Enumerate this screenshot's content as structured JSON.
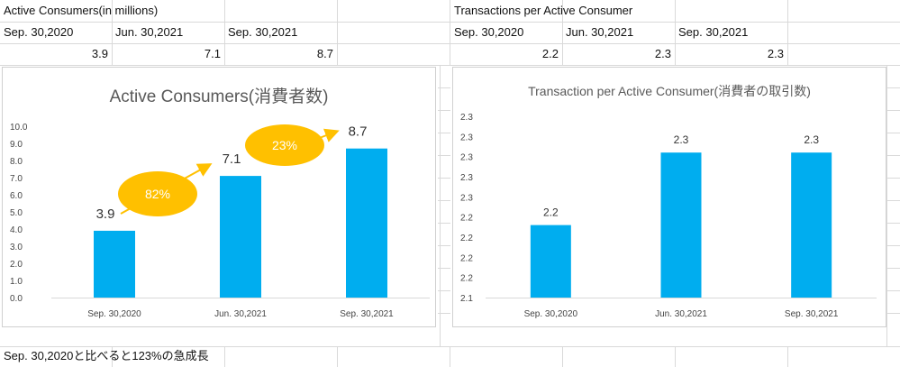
{
  "sheet": {
    "left_block": {
      "title": "Active Consumers(in millions)",
      "dates": [
        "Sep. 30,2020",
        "Jun. 30,2021",
        "Sep. 30,2021"
      ],
      "values": [
        "3.9",
        "7.1",
        "8.7"
      ]
    },
    "right_block": {
      "title": "Transactions per Active Consumer",
      "dates": [
        "Sep. 30,2020",
        "Jun. 30,2021",
        "Sep. 30,2021"
      ],
      "values": [
        "2.2",
        "2.3",
        "2.3"
      ]
    },
    "note": "Sep. 30,2020と比べると123%の急成長"
  },
  "colors": {
    "bar": "#00adef",
    "growth_bubble": "#ffc000",
    "growth_text": "#ffffff",
    "axis_text": "#444444",
    "title_text": "#595959"
  },
  "chart_data": [
    {
      "type": "bar",
      "title": "Active Consumers(消費者数)",
      "categories": [
        "Sep. 30,2020",
        "Jun. 30,2021",
        "Sep. 30,2021"
      ],
      "values": [
        3.9,
        7.1,
        8.7
      ],
      "data_labels": [
        "3.9",
        "7.1",
        "8.7"
      ],
      "ylim": [
        0,
        10
      ],
      "yticks": [
        "0.0",
        "1.0",
        "2.0",
        "3.0",
        "4.0",
        "5.0",
        "6.0",
        "7.0",
        "8.0",
        "9.0",
        "10.0"
      ],
      "xlabel": "",
      "ylabel": "",
      "grid": false,
      "annotations": [
        {
          "text": "82%",
          "from": "Sep. 30,2020",
          "to": "Jun. 30,2021"
        },
        {
          "text": "23%",
          "from": "Jun. 30,2021",
          "to": "Sep. 30,2021"
        }
      ]
    },
    {
      "type": "bar",
      "title": "Transaction per Active Consumer(消費者の取引数)",
      "categories": [
        "Sep. 30,2020",
        "Jun. 30,2021",
        "Sep. 30,2021"
      ],
      "values": [
        2.2,
        2.3,
        2.3
      ],
      "data_labels": [
        "2.2",
        "2.3",
        "2.3"
      ],
      "ylim": [
        2.1,
        2.35
      ],
      "yticks": [
        "2.1",
        "2.2",
        "2.2",
        "2.2",
        "2.2",
        "2.3",
        "2.3",
        "2.3",
        "2.3",
        "2.3"
      ],
      "xlabel": "",
      "ylabel": "",
      "grid": false
    }
  ]
}
